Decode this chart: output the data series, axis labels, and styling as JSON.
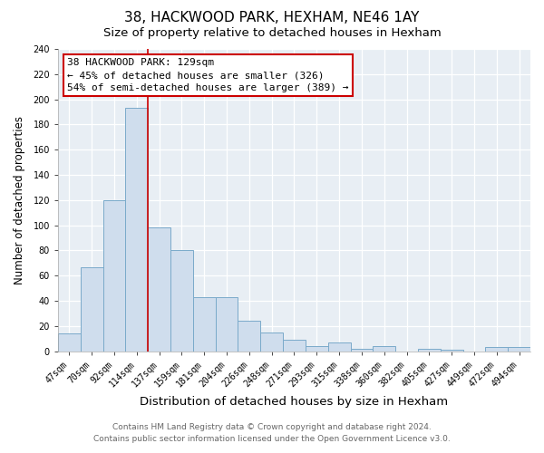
{
  "title": "38, HACKWOOD PARK, HEXHAM, NE46 1AY",
  "subtitle": "Size of property relative to detached houses in Hexham",
  "xlabel": "Distribution of detached houses by size in Hexham",
  "ylabel": "Number of detached properties",
  "categories": [
    "47sqm",
    "70sqm",
    "92sqm",
    "114sqm",
    "137sqm",
    "159sqm",
    "181sqm",
    "204sqm",
    "226sqm",
    "248sqm",
    "271sqm",
    "293sqm",
    "315sqm",
    "338sqm",
    "360sqm",
    "382sqm",
    "405sqm",
    "427sqm",
    "449sqm",
    "472sqm",
    "494sqm"
  ],
  "values": [
    14,
    67,
    120,
    193,
    98,
    80,
    43,
    43,
    24,
    15,
    9,
    4,
    7,
    2,
    4,
    0,
    2,
    1,
    0,
    3,
    3
  ],
  "bar_color": "#cfdded",
  "bar_edge_color": "#7aaaca",
  "vline_x_index": 4,
  "vline_color": "#cc0000",
  "ylim": [
    0,
    240
  ],
  "yticks": [
    0,
    20,
    40,
    60,
    80,
    100,
    120,
    140,
    160,
    180,
    200,
    220,
    240
  ],
  "annotation_text": "38 HACKWOOD PARK: 129sqm\n← 45% of detached houses are smaller (326)\n54% of semi-detached houses are larger (389) →",
  "annotation_box_color": "#ffffff",
  "annotation_box_edge": "#cc0000",
  "footer_line1": "Contains HM Land Registry data © Crown copyright and database right 2024.",
  "footer_line2": "Contains public sector information licensed under the Open Government Licence v3.0.",
  "fig_background": "#ffffff",
  "plot_background": "#e8eef4",
  "title_fontsize": 11,
  "subtitle_fontsize": 9.5,
  "xlabel_fontsize": 9.5,
  "ylabel_fontsize": 8.5,
  "tick_fontsize": 7,
  "annotation_fontsize": 8,
  "footer_fontsize": 6.5
}
